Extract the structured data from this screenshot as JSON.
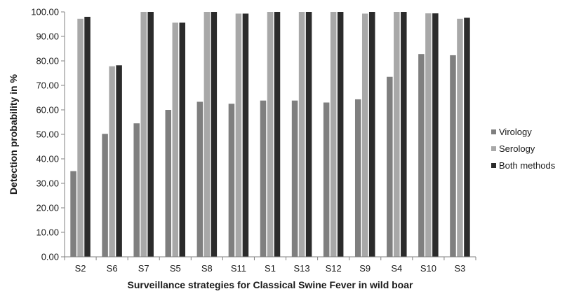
{
  "chart_data": {
    "type": "bar",
    "title": "",
    "xlabel": "Surveillance strategies for Classical Swine Fever in wild boar",
    "ylabel": "Detection probability in %",
    "ylim": [
      0,
      100
    ],
    "yticks": [
      "0.00",
      "10.00",
      "20.00",
      "30.00",
      "40.00",
      "50.00",
      "60.00",
      "70.00",
      "80.00",
      "90.00",
      "100.00"
    ],
    "grid": false,
    "legend_position": "right",
    "categories": [
      "S2",
      "S6",
      "S7",
      "S5",
      "S8",
      "S11",
      "S1",
      "S13",
      "S12",
      "S9",
      "S4",
      "S10",
      "S3"
    ],
    "series": [
      {
        "name": "Virology",
        "color": "#7f7f7f",
        "values": [
          35.0,
          50.2,
          54.5,
          60.0,
          63.3,
          62.5,
          63.8,
          63.8,
          63.0,
          64.3,
          73.5,
          82.8,
          82.3
        ]
      },
      {
        "name": "Serology",
        "color": "#a8a8a8",
        "values": [
          97.2,
          77.8,
          100.0,
          95.6,
          100.0,
          99.3,
          100.0,
          100.0,
          100.0,
          99.3,
          100.0,
          99.4,
          97.2
        ]
      },
      {
        "name": "Both methods",
        "color": "#2b2b2b",
        "values": [
          98.0,
          78.2,
          100.0,
          95.6,
          100.0,
          99.3,
          100.0,
          100.0,
          100.0,
          100.0,
          100.0,
          99.4,
          97.6
        ]
      }
    ]
  }
}
